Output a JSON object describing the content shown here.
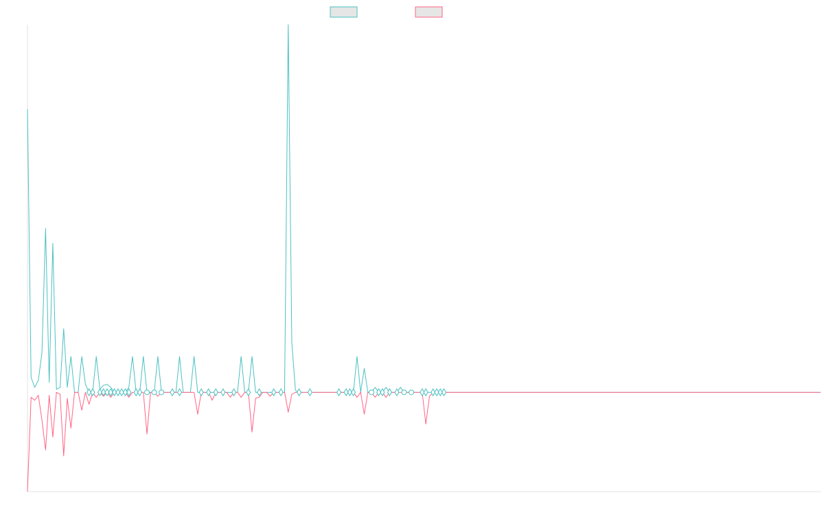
{
  "chart_data": {
    "type": "line",
    "title": "",
    "xlabel": "",
    "ylabel": "",
    "grid": false,
    "legend_position": "top-center",
    "x_count": 220,
    "ylim": [
      -1.0,
      3.7
    ],
    "series": [
      {
        "color": "#4bc0c0",
        "fill": "#e6e6e6",
        "baseline": 0,
        "spikes": [
          [
            0,
            2.85
          ],
          [
            1,
            0.15
          ],
          [
            2,
            0.05
          ],
          [
            3,
            0.12
          ],
          [
            4,
            0.4
          ],
          [
            5,
            1.65
          ],
          [
            6,
            0.1
          ],
          [
            7,
            1.5
          ],
          [
            8,
            0.03
          ],
          [
            9,
            0.05
          ],
          [
            10,
            0.64
          ],
          [
            11,
            0.05
          ],
          [
            12,
            0.36
          ],
          [
            15,
            0.36
          ],
          [
            16,
            0.08
          ],
          [
            19,
            0.36
          ],
          [
            20,
            0.03
          ],
          [
            21,
            0.07
          ],
          [
            22,
            0.08
          ],
          [
            23,
            0.05
          ],
          [
            28,
            0.05
          ],
          [
            29,
            0.36
          ],
          [
            32,
            0.36
          ],
          [
            36,
            0.36
          ],
          [
            42,
            0.36
          ],
          [
            46,
            0.36
          ],
          [
            59,
            0.36
          ],
          [
            62,
            0.36
          ],
          [
            72,
            3.7
          ],
          [
            73,
            0.5
          ],
          [
            74,
            0.02
          ],
          [
            91,
            0.36
          ],
          [
            93,
            0.24
          ],
          [
            96,
            0.05
          ],
          [
            99,
            0.05
          ],
          [
            103,
            0.05
          ]
        ]
      },
      {
        "color": "#ff6384",
        "fill": "#e6e6e6",
        "baseline": 0,
        "spikes": [
          [
            0,
            -1.0
          ],
          [
            1,
            -0.05
          ],
          [
            2,
            -0.08
          ],
          [
            3,
            -0.03
          ],
          [
            4,
            -0.28
          ],
          [
            5,
            -0.58
          ],
          [
            6,
            -0.03
          ],
          [
            7,
            -0.45
          ],
          [
            9,
            -0.02
          ],
          [
            10,
            -0.64
          ],
          [
            11,
            -0.06
          ],
          [
            12,
            -0.36
          ],
          [
            15,
            -0.18
          ],
          [
            17,
            -0.12
          ],
          [
            19,
            -0.05
          ],
          [
            21,
            -0.04
          ],
          [
            23,
            -0.05
          ],
          [
            28,
            -0.05
          ],
          [
            33,
            -0.42
          ],
          [
            36,
            -0.04
          ],
          [
            47,
            -0.22
          ],
          [
            51,
            -0.08
          ],
          [
            56,
            -0.05
          ],
          [
            59,
            -0.05
          ],
          [
            62,
            -0.4
          ],
          [
            63,
            -0.06
          ],
          [
            64,
            -0.05
          ],
          [
            67,
            -0.04
          ],
          [
            72,
            -0.2
          ],
          [
            73,
            -0.02
          ],
          [
            91,
            -0.05
          ],
          [
            93,
            -0.22
          ],
          [
            96,
            -0.05
          ],
          [
            99,
            -0.05
          ],
          [
            110,
            -0.32
          ],
          [
            111,
            -0.04
          ]
        ]
      }
    ],
    "markers": [
      {
        "x": 17,
        "shape": "diamond"
      },
      {
        "x": 18,
        "shape": "diamond"
      },
      {
        "x": 20,
        "shape": "diamond"
      },
      {
        "x": 21,
        "shape": "diamond"
      },
      {
        "x": 22,
        "shape": "diamond"
      },
      {
        "x": 23,
        "shape": "diamond"
      },
      {
        "x": 24,
        "shape": "diamond"
      },
      {
        "x": 25,
        "shape": "diamond"
      },
      {
        "x": 26,
        "shape": "diamond"
      },
      {
        "x": 27,
        "shape": "diamond"
      },
      {
        "x": 28,
        "shape": "diamond"
      },
      {
        "x": 30,
        "shape": "diamond"
      },
      {
        "x": 31,
        "shape": "diamond"
      },
      {
        "x": 33,
        "shape": "circle"
      },
      {
        "x": 35,
        "shape": "circle"
      },
      {
        "x": 37,
        "shape": "circle"
      },
      {
        "x": 40,
        "shape": "diamond"
      },
      {
        "x": 42,
        "shape": "diamond"
      },
      {
        "x": 48,
        "shape": "diamond"
      },
      {
        "x": 50,
        "shape": "diamond"
      },
      {
        "x": 52,
        "shape": "diamond"
      },
      {
        "x": 54,
        "shape": "diamond"
      },
      {
        "x": 57,
        "shape": "diamond"
      },
      {
        "x": 61,
        "shape": "diamond"
      },
      {
        "x": 64,
        "shape": "diamond"
      },
      {
        "x": 68,
        "shape": "diamond"
      },
      {
        "x": 70,
        "shape": "diamond"
      },
      {
        "x": 75,
        "shape": "diamond"
      },
      {
        "x": 78,
        "shape": "diamond"
      },
      {
        "x": 86,
        "shape": "diamond"
      },
      {
        "x": 88,
        "shape": "diamond"
      },
      {
        "x": 89,
        "shape": "diamond"
      },
      {
        "x": 90,
        "shape": "diamond"
      },
      {
        "x": 95,
        "shape": "circle"
      },
      {
        "x": 97,
        "shape": "diamond"
      },
      {
        "x": 98,
        "shape": "diamond"
      },
      {
        "x": 100,
        "shape": "diamond"
      },
      {
        "x": 102,
        "shape": "diamond"
      },
      {
        "x": 104,
        "shape": "circle"
      },
      {
        "x": 106,
        "shape": "circle"
      },
      {
        "x": 109,
        "shape": "diamond"
      },
      {
        "x": 110,
        "shape": "diamond"
      },
      {
        "x": 112,
        "shape": "diamond"
      },
      {
        "x": 113,
        "shape": "diamond"
      },
      {
        "x": 114,
        "shape": "diamond"
      },
      {
        "x": 115,
        "shape": "diamond"
      }
    ],
    "axis_color": "#e0e0e0"
  }
}
